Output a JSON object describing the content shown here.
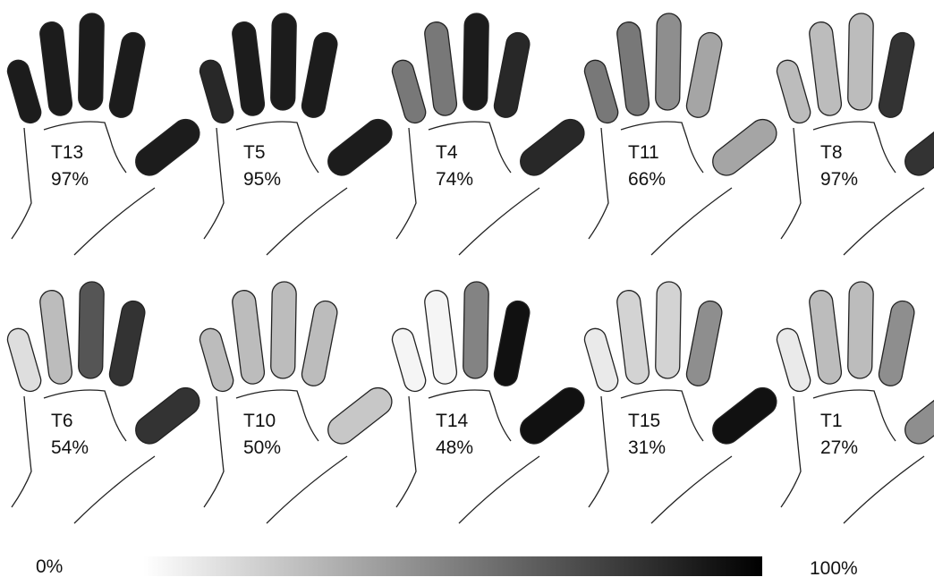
{
  "hands": [
    {
      "label": "T13",
      "value": "97%",
      "fingers": [
        95,
        95,
        95,
        95,
        95
      ]
    },
    {
      "label": "T5",
      "value": "95%",
      "fingers": [
        90,
        95,
        95,
        95,
        95
      ]
    },
    {
      "label": "T4",
      "value": "74%",
      "fingers": [
        55,
        55,
        95,
        90,
        90
      ]
    },
    {
      "label": "T11",
      "value": "66%",
      "fingers": [
        55,
        55,
        45,
        35,
        35
      ]
    },
    {
      "label": "T8",
      "value": "97%",
      "fingers": [
        25,
        25,
        25,
        85,
        85
      ]
    },
    {
      "label": "T6",
      "value": "54%",
      "fingers": [
        10,
        25,
        70,
        85,
        85
      ]
    },
    {
      "label": "T10",
      "value": "50%",
      "fingers": [
        25,
        25,
        25,
        25,
        20
      ]
    },
    {
      "label": "T14",
      "value": "48%",
      "fingers": [
        0,
        0,
        50,
        100,
        100
      ]
    },
    {
      "label": "T15",
      "value": "31%",
      "fingers": [
        5,
        15,
        15,
        45,
        100
      ]
    },
    {
      "label": "T1",
      "value": "27%",
      "fingers": [
        5,
        25,
        25,
        45,
        45
      ]
    }
  ],
  "scale": {
    "min_label": "0%",
    "max_label": "100%"
  }
}
